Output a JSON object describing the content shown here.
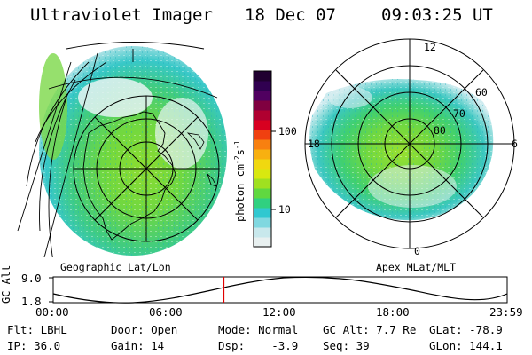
{
  "header": {
    "title": "Ultraviolet Imager",
    "date": "18 Dec 07",
    "time": "09:03:25 UT"
  },
  "colorbar": {
    "unit_label": "photon cm",
    "unit_exp1": "-2",
    "unit_s": "s",
    "unit_exp2": "-1",
    "ticks": [
      "100",
      "10"
    ],
    "colors": [
      "#e8f0f0",
      "#c8e8ec",
      "#80d8e0",
      "#30c8d0",
      "#30d080",
      "#60d840",
      "#a0e020",
      "#d8e810",
      "#f0d810",
      "#f8b010",
      "#f88010",
      "#f04010",
      "#d80020",
      "#b00030",
      "#800040",
      "#500060",
      "#300050",
      "#200030"
    ]
  },
  "left_map": {
    "caption": "Geographic Lat/Lon"
  },
  "right_map": {
    "caption": "Apex MLat/MLT",
    "mlt_labels": {
      "top": "12",
      "left": "18",
      "right": "6",
      "bottom": "0"
    },
    "lat_labels": [
      "60",
      "70",
      "80"
    ]
  },
  "timeline": {
    "axis_label": "GC Alt",
    "y_ticks": [
      "9.0",
      "1.8"
    ],
    "x_ticks": [
      "00:00",
      "06:00",
      "12:00",
      "18:00",
      "23:59"
    ],
    "current_fraction": 0.376
  },
  "info": {
    "flt": "Flt: LBHL",
    "ip": "IP: 36.0",
    "door": "Door: Open",
    "gain": "Gain: 14",
    "mode": "Mode: Normal",
    "dsp": "Dsp:    -3.9",
    "gc_alt": "GC Alt: 7.7 Re",
    "seq": "Seq: 39",
    "glat": "GLat: -78.9",
    "glon": "GLon: 144.1"
  }
}
